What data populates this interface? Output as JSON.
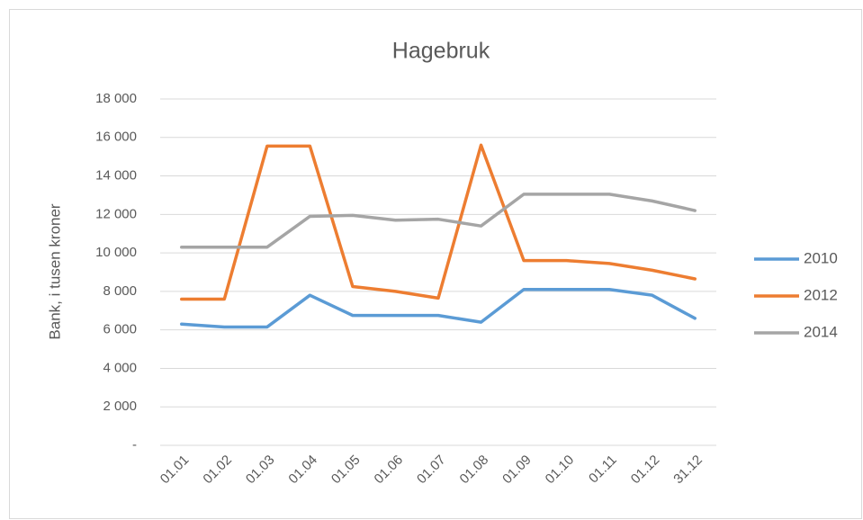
{
  "chart_data": {
    "type": "line",
    "title": "Hagebruk",
    "y_label": "Bank, i tusen kroner",
    "categories": [
      "01.01",
      "01.02",
      "01.03",
      "01.04",
      "01.05",
      "01.06",
      "01.07",
      "01.08",
      "01.09",
      "01.10",
      "01.11",
      "01.12",
      "31.12"
    ],
    "series": [
      {
        "name": "2010",
        "color": "#5b9bd5",
        "values": [
          6300,
          6150,
          6150,
          7800,
          6750,
          6750,
          6750,
          6400,
          8100,
          8100,
          8100,
          7800,
          6600
        ]
      },
      {
        "name": "2012",
        "color": "#ed7d31",
        "values": [
          7600,
          7600,
          15550,
          15550,
          8250,
          8000,
          7650,
          15600,
          9600,
          9600,
          9450,
          9100,
          8650
        ]
      },
      {
        "name": "2014",
        "color": "#a5a5a5",
        "values": [
          10300,
          10300,
          10300,
          11900,
          11950,
          11700,
          11750,
          11400,
          13050,
          13050,
          13050,
          12700,
          12200
        ]
      }
    ],
    "ylim": [
      0,
      18000
    ],
    "yticks": [
      {
        "value": 0,
        "label": "-"
      },
      {
        "value": 2000,
        "label": "2 000"
      },
      {
        "value": 4000,
        "label": "4 000"
      },
      {
        "value": 6000,
        "label": "6 000"
      },
      {
        "value": 8000,
        "label": "8 000"
      },
      {
        "value": 10000,
        "label": "10 000"
      },
      {
        "value": 12000,
        "label": "12 000"
      },
      {
        "value": 14000,
        "label": "14 000"
      },
      {
        "value": 16000,
        "label": "16 000"
      },
      {
        "value": 18000,
        "label": "18 000"
      }
    ],
    "grid": true,
    "legend": "right"
  }
}
